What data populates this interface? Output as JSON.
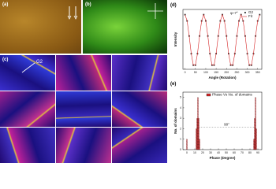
{
  "panels": {
    "a": "(a)",
    "b": "(b)",
    "c": "(c)",
    "c_marker": "G2",
    "d": "(d)",
    "e": "(e)"
  },
  "chart_data": [
    {
      "type": "line",
      "x_label": "Angle (Rotation)",
      "y_label": "Intensity",
      "annotation": "φ~7°",
      "x": [
        0,
        10,
        20,
        30,
        40,
        50,
        60,
        70,
        80,
        90,
        100,
        110,
        120,
        130,
        140,
        150,
        160,
        170,
        180,
        190,
        200,
        210,
        220,
        230,
        240,
        250,
        260,
        270,
        280,
        290,
        300,
        310,
        320,
        330,
        340,
        350,
        360
      ],
      "series": [
        {
          "name": "G2",
          "color": "#222222",
          "marker": "square",
          "values": [
            1,
            0.88,
            0.59,
            0.25,
            0.03,
            0.03,
            0.25,
            0.59,
            0.88,
            1,
            0.88,
            0.59,
            0.25,
            0.03,
            0.03,
            0.25,
            0.59,
            0.88,
            1,
            0.88,
            0.59,
            0.25,
            0.03,
            0.03,
            0.25,
            0.59,
            0.88,
            1,
            0.88,
            0.59,
            0.25,
            0.03,
            0.03,
            0.25,
            0.59,
            0.88,
            1
          ]
        },
        {
          "name": "Fit",
          "color": "#d62728",
          "values": [
            1,
            0.88,
            0.59,
            0.25,
            0.03,
            0.03,
            0.25,
            0.59,
            0.88,
            1,
            0.88,
            0.59,
            0.25,
            0.03,
            0.03,
            0.25,
            0.59,
            0.88,
            1,
            0.88,
            0.59,
            0.25,
            0.03,
            0.03,
            0.25,
            0.59,
            0.88,
            1,
            0.88,
            0.59,
            0.25,
            0.03,
            0.03,
            0.25,
            0.59,
            0.88,
            1
          ]
        }
      ],
      "xlim": [
        -10,
        370
      ],
      "xticks": [
        0,
        50,
        100,
        150,
        200,
        250,
        300,
        350
      ],
      "ylim": [
        -0.05,
        1.1
      ]
    },
    {
      "type": "bar",
      "x_label": "Phase (Degree)",
      "y_label": "No. of domains",
      "annotation": "90°",
      "series": [
        {
          "name": "Phase Vs No. of domains",
          "color": "#d62728",
          "x": [
            0,
            12,
            13,
            14,
            15,
            16,
            85,
            86,
            87,
            88
          ],
          "values": [
            1,
            2,
            3,
            5,
            3,
            1,
            1,
            3,
            5,
            2
          ]
        }
      ],
      "xlim": [
        -5,
        95
      ],
      "xticks": [
        0,
        10,
        20,
        30,
        40,
        50,
        60,
        70,
        80,
        90
      ],
      "ylim": [
        0,
        5.5
      ],
      "yticks": [
        0,
        1,
        2,
        3,
        4,
        5
      ]
    }
  ]
}
